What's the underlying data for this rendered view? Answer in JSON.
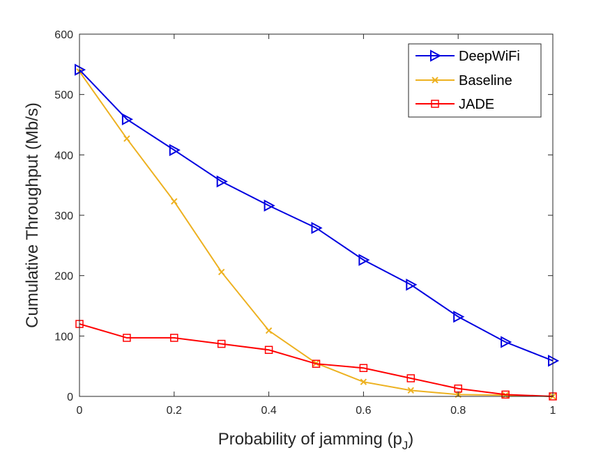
{
  "chart_data": {
    "type": "line",
    "title": "",
    "xlabel": "Probability of jamming (p",
    "xlabel_subscript": "J",
    "xlabel_close": ")",
    "ylabel": "Cumulative Throughput (Mb/s)",
    "xlim": [
      0,
      1
    ],
    "ylim": [
      0,
      600
    ],
    "x_ticks": [
      0,
      0.2,
      0.4,
      0.6,
      0.8,
      1
    ],
    "x_tick_labels": [
      "0",
      "0.2",
      "0.4",
      "0.6",
      "0.8",
      "1"
    ],
    "y_ticks": [
      0,
      100,
      200,
      300,
      400,
      500,
      600
    ],
    "y_tick_labels": [
      "0",
      "100",
      "200",
      "300",
      "400",
      "500",
      "600"
    ],
    "grid": false,
    "legend_position": "top-right",
    "x": [
      0,
      0.1,
      0.2,
      0.3,
      0.4,
      0.5,
      0.6,
      0.7,
      0.8,
      0.9,
      1
    ],
    "series": [
      {
        "name": "DeepWiFi",
        "color": "#0000e0",
        "marker": "triangle-right",
        "values": [
          541,
          459,
          408,
          356,
          316,
          279,
          226,
          185,
          132,
          90,
          59
        ]
      },
      {
        "name": "Baseline",
        "color": "#edb120",
        "marker": "x",
        "values": [
          538,
          427,
          323,
          206,
          109,
          55,
          24,
          10,
          3,
          2,
          0
        ]
      },
      {
        "name": "JADE",
        "color": "#ff0000",
        "marker": "square",
        "values": [
          120,
          97,
          97,
          87,
          77,
          54,
          47,
          30,
          13,
          3,
          0
        ]
      }
    ]
  }
}
